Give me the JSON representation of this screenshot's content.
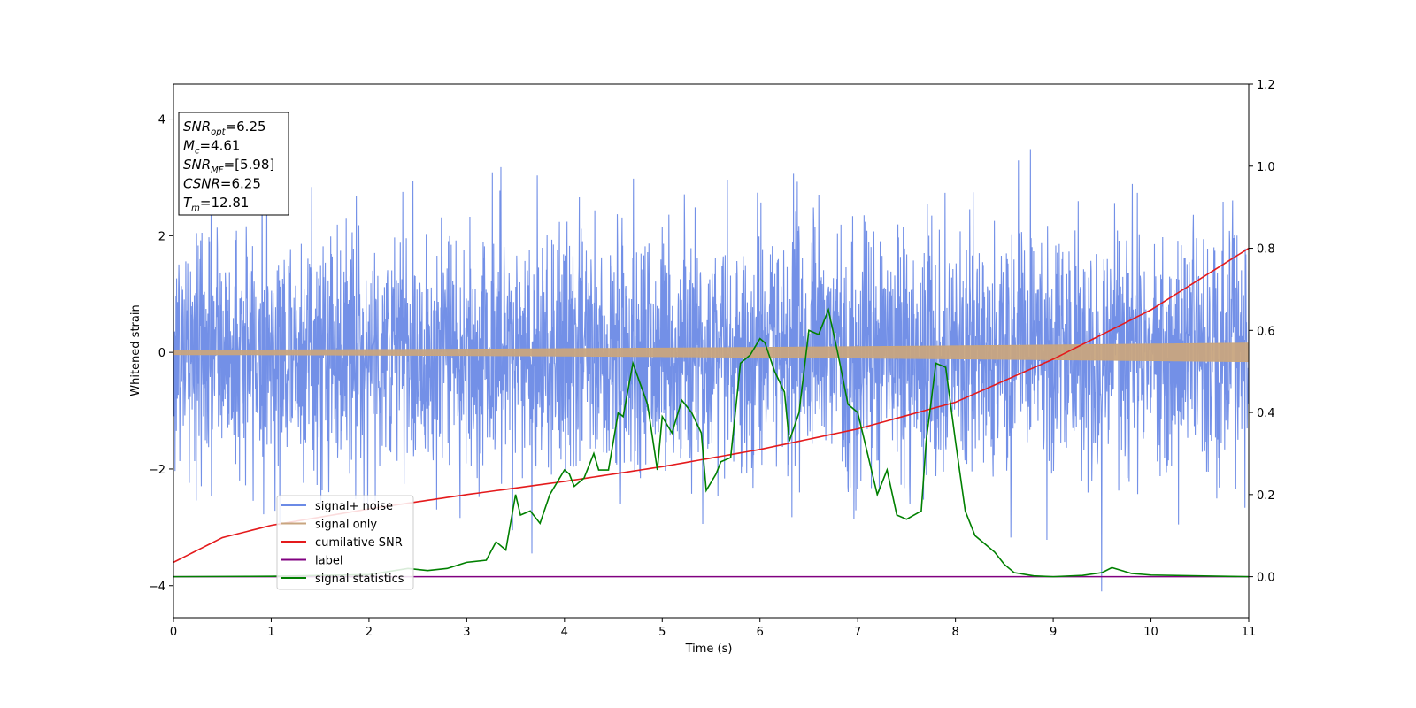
{
  "chart_data": {
    "type": "line",
    "title": "",
    "xlabel": "Time (s)",
    "ylabel": "Whitened strain",
    "y2label": "",
    "xlim": [
      0,
      11
    ],
    "ylim": [
      -4.55,
      4.6
    ],
    "y2lim": [
      -0.1,
      1.2
    ],
    "x_ticks": [
      0,
      1,
      2,
      3,
      4,
      5,
      6,
      7,
      8,
      9,
      10,
      11
    ],
    "y_ticks": [
      -4,
      -2,
      0,
      2,
      4
    ],
    "y2_ticks": [
      0.0,
      0.2,
      0.4,
      0.6,
      0.8,
      1.0,
      1.2
    ],
    "grid": false,
    "legend_position": "lower-left",
    "annotation": {
      "lines": [
        {
          "sym": "SNR",
          "sub": "opt",
          "value": "=6.25"
        },
        {
          "sym": "M",
          "sub": "c",
          "value": "=4.61"
        },
        {
          "sym": "SNR",
          "sub": "MF",
          "value": "=[5.98]"
        },
        {
          "sym": "CSNR",
          "sub": "",
          "value": "=6.25"
        },
        {
          "sym": "T",
          "sub": "m",
          "value": "=12.81"
        }
      ]
    },
    "series": [
      {
        "name": "signal+ noise",
        "axis": "left",
        "color": "#6b8ae6",
        "kind": "noise",
        "sigma": 1.05,
        "x_range": [
          0,
          11
        ],
        "y_range": [
          -4.1,
          4.18
        ]
      },
      {
        "name": "signal only",
        "axis": "left",
        "color": "#c8a57f",
        "kind": "chirp",
        "amplitude_start": 0.04,
        "amplitude_end": 0.16
      },
      {
        "name": "cumilative SNR",
        "axis": "right",
        "color": "#e41a1c",
        "x": [
          0,
          0.5,
          1,
          2,
          3,
          4,
          5,
          6,
          7,
          8,
          9,
          10,
          11
        ],
        "y": [
          0.035,
          0.095,
          0.125,
          0.165,
          0.2,
          0.232,
          0.268,
          0.31,
          0.36,
          0.425,
          0.53,
          0.65,
          0.8
        ]
      },
      {
        "name": "label",
        "axis": "right",
        "color": "#800080",
        "x": [
          0,
          11
        ],
        "y": [
          0.0,
          0.0
        ]
      },
      {
        "name": "signal statistics",
        "axis": "right",
        "color": "#008000",
        "x": [
          0,
          1,
          2,
          2.4,
          2.6,
          2.8,
          3.0,
          3.2,
          3.3,
          3.4,
          3.5,
          3.55,
          3.65,
          3.75,
          3.85,
          4.0,
          4.05,
          4.1,
          4.2,
          4.3,
          4.35,
          4.45,
          4.55,
          4.6,
          4.7,
          4.85,
          4.95,
          5.0,
          5.1,
          5.2,
          5.3,
          5.4,
          5.45,
          5.55,
          5.6,
          5.7,
          5.8,
          5.9,
          6.0,
          6.05,
          6.15,
          6.25,
          6.3,
          6.4,
          6.5,
          6.6,
          6.7,
          6.8,
          6.9,
          7.0,
          7.1,
          7.2,
          7.3,
          7.4,
          7.5,
          7.65,
          7.7,
          7.8,
          7.9,
          8.0,
          8.1,
          8.2,
          8.3,
          8.4,
          8.5,
          8.6,
          8.8,
          9.0,
          9.3,
          9.5,
          9.6,
          9.8,
          10.0,
          11.0
        ],
        "y": [
          0.0,
          0.001,
          0.005,
          0.02,
          0.015,
          0.02,
          0.035,
          0.04,
          0.085,
          0.065,
          0.2,
          0.15,
          0.16,
          0.13,
          0.2,
          0.26,
          0.25,
          0.22,
          0.24,
          0.3,
          0.26,
          0.26,
          0.4,
          0.39,
          0.52,
          0.42,
          0.26,
          0.39,
          0.35,
          0.43,
          0.4,
          0.35,
          0.21,
          0.25,
          0.28,
          0.29,
          0.52,
          0.54,
          0.58,
          0.57,
          0.5,
          0.45,
          0.33,
          0.4,
          0.6,
          0.59,
          0.65,
          0.54,
          0.42,
          0.4,
          0.3,
          0.2,
          0.26,
          0.15,
          0.14,
          0.16,
          0.33,
          0.52,
          0.51,
          0.33,
          0.16,
          0.1,
          0.08,
          0.06,
          0.03,
          0.01,
          0.002,
          0.0,
          0.003,
          0.01,
          0.022,
          0.008,
          0.004,
          0.0
        ]
      }
    ]
  }
}
